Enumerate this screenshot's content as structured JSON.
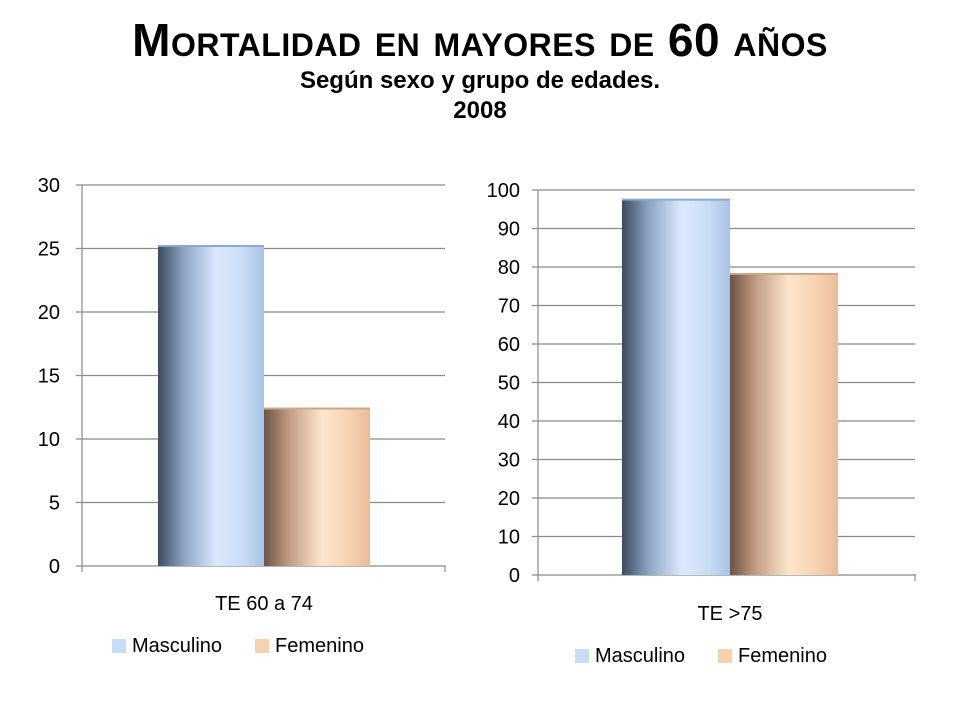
{
  "header": {
    "title": "Mortalidad en mayores de 60 años",
    "subtitle": "Según sexo y grupo de edades.",
    "year": "2008"
  },
  "colors": {
    "masculino": "#c9dcf5",
    "femenino": "#f7d2b0",
    "grid": "#8a8a8a"
  },
  "chart_data": [
    {
      "type": "bar",
      "categories": [
        "TE 60 a 74"
      ],
      "series": [
        {
          "name": "Masculino",
          "values": [
            25.2
          ]
        },
        {
          "name": "Femenino",
          "values": [
            12.4
          ]
        }
      ],
      "ylim": [
        0,
        30
      ],
      "ytick_step": 5,
      "grid": true,
      "legend": "bottom"
    },
    {
      "type": "bar",
      "categories": [
        "TE >75"
      ],
      "series": [
        {
          "name": "Masculino",
          "values": [
            97.5
          ]
        },
        {
          "name": "Femenino",
          "values": [
            78.2
          ]
        }
      ],
      "ylim": [
        0,
        100
      ],
      "ytick_step": 10,
      "grid": true,
      "legend": "bottom"
    }
  ]
}
